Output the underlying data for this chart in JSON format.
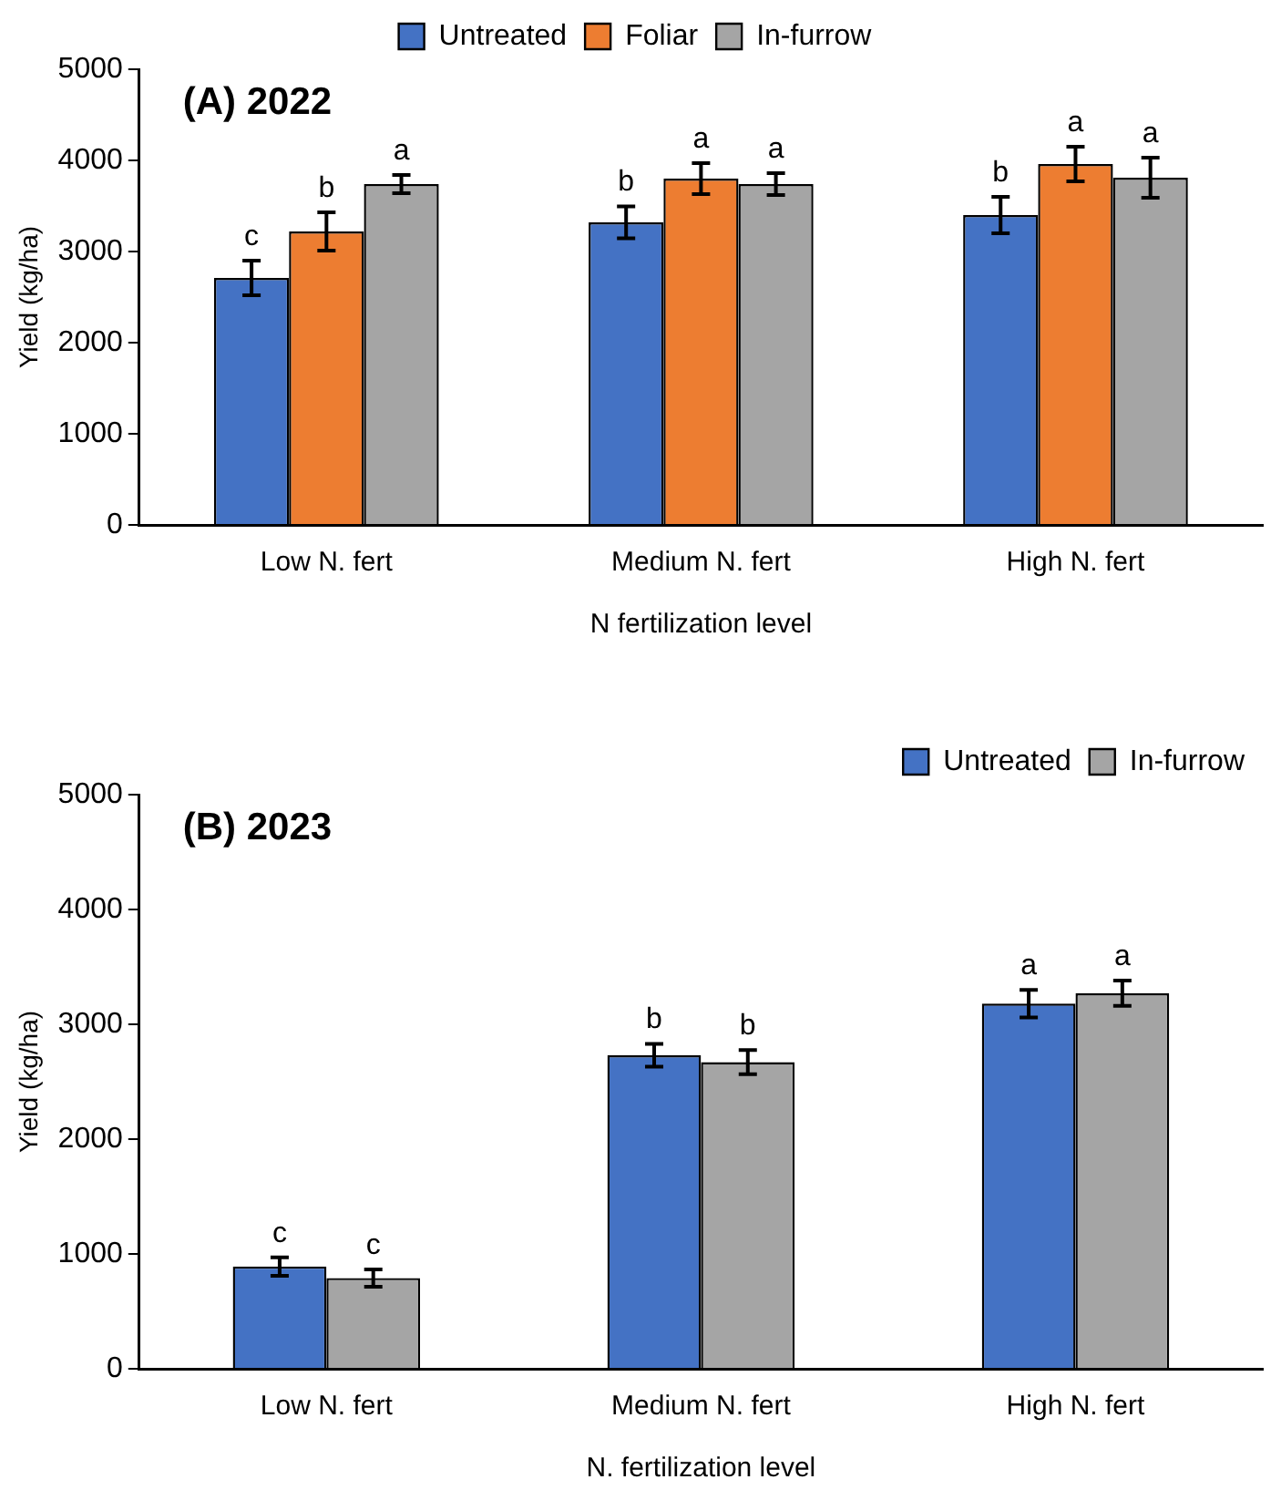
{
  "chart_data": [
    {
      "type": "bar",
      "title": "(A) 2022",
      "xlabel": "N fertilization level",
      "ylabel": "Yield (kg/ha)",
      "categories": [
        "Low N. fert",
        "Medium N. fert",
        "High N. fert"
      ],
      "ylim": [
        0,
        5000
      ],
      "yticks": [
        0,
        1000,
        2000,
        3000,
        4000,
        5000
      ],
      "legend": "top",
      "series": [
        {
          "name": "Untreated",
          "color": "#4472c4",
          "values": [
            2710,
            3320,
            3400
          ],
          "errors": [
            190,
            175,
            200
          ],
          "value_labels": [
            "c",
            "b",
            "b"
          ]
        },
        {
          "name": "Foliar",
          "color": "#ed7d31",
          "values": [
            3220,
            3800,
            3960
          ],
          "errors": [
            210,
            170,
            190
          ],
          "value_labels": [
            "b",
            "a",
            "a"
          ]
        },
        {
          "name": "In-furrow",
          "color": "#a5a5a5",
          "values": [
            3740,
            3740,
            3810
          ],
          "errors": [
            100,
            120,
            220
          ],
          "value_labels": [
            "a",
            "a",
            "a"
          ]
        }
      ]
    },
    {
      "type": "bar",
      "title": "(B) 2023",
      "xlabel": "N. fertilization level",
      "ylabel": "Yield (kg/ha)",
      "categories": [
        "Low N. fert",
        "Medium N. fert",
        "High N. fert"
      ],
      "ylim": [
        0,
        5000
      ],
      "yticks": [
        0,
        1000,
        2000,
        3000,
        4000,
        5000
      ],
      "legend": "top right",
      "series": [
        {
          "name": "Untreated",
          "color": "#4472c4",
          "values": [
            890,
            2730,
            3180
          ],
          "errors": [
            80,
            100,
            120
          ],
          "value_labels": [
            "c",
            "b",
            "a"
          ]
        },
        {
          "name": "In-furrow",
          "color": "#a5a5a5",
          "values": [
            790,
            2670,
            3270
          ],
          "errors": [
            75,
            105,
            110
          ],
          "value_labels": [
            "c",
            "b",
            "a"
          ]
        }
      ]
    }
  ]
}
